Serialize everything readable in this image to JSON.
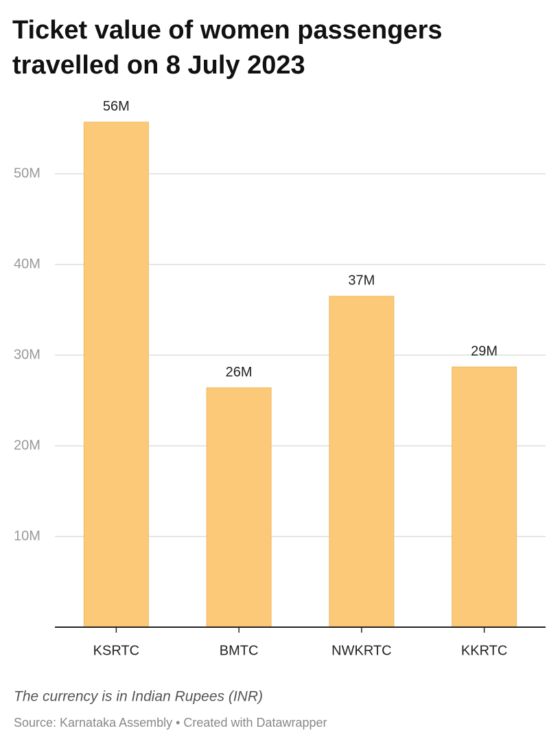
{
  "chart_data": {
    "type": "bar",
    "title": [
      "Ticket value of women passengers",
      "travelled on 8 July 2023"
    ],
    "categories": [
      "KSRTC",
      "BMTC",
      "NWKRTC",
      "KKRTC"
    ],
    "values": [
      55700000,
      26400000,
      36500000,
      28700000
    ],
    "value_labels": [
      "56M",
      "26M",
      "37M",
      "29M"
    ],
    "color": "#fcc978",
    "ylim": [
      0,
      60000000
    ],
    "yticks": [
      {
        "value": 10000000,
        "label": "10M"
      },
      {
        "value": 20000000,
        "label": "20M"
      },
      {
        "value": 30000000,
        "label": "30M"
      },
      {
        "value": 40000000,
        "label": "40M"
      },
      {
        "value": 50000000,
        "label": "50M"
      }
    ],
    "grid": true,
    "note": "The currency is in Indian Rupees (INR)",
    "source": "Source: Karnataka Assembly • Created with Datawrapper"
  }
}
